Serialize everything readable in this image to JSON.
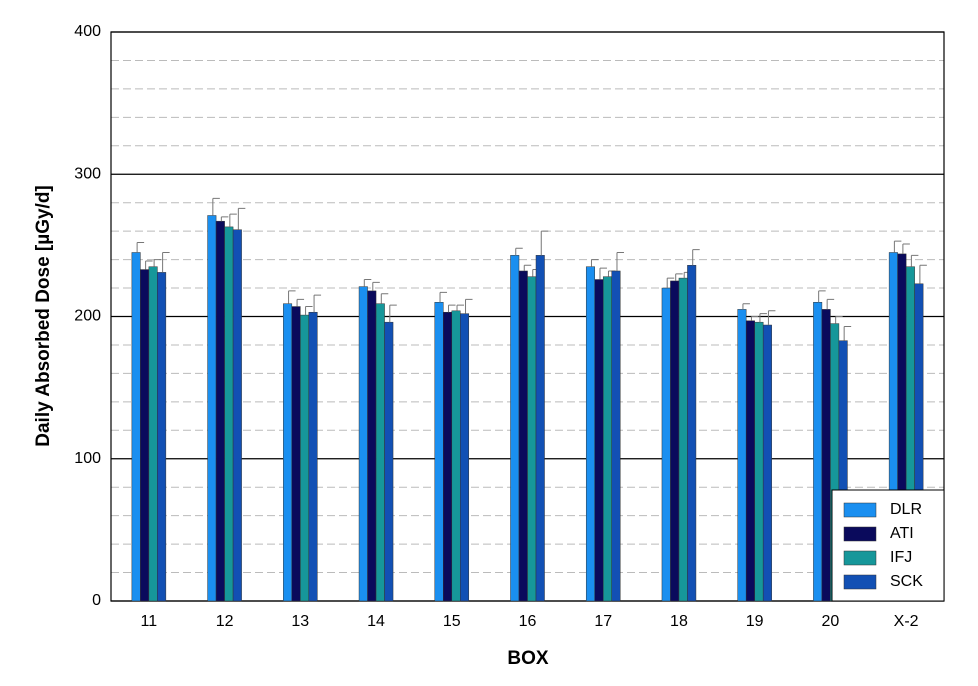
{
  "chart_data": {
    "type": "bar",
    "x_label": "BOX",
    "y_label": "Daily Absorbed Dose [µGy/d]",
    "categories": [
      "11",
      "12",
      "13",
      "14",
      "15",
      "16",
      "17",
      "18",
      "19",
      "20",
      "X-2"
    ],
    "series": [
      {
        "name": "DLR",
        "color": "#1a8ff0",
        "values": [
          245,
          271,
          209,
          221,
          210,
          243,
          235,
          220,
          205,
          210,
          245
        ],
        "errors": [
          7,
          12,
          9,
          5,
          7,
          5,
          5,
          7,
          4,
          8,
          8
        ]
      },
      {
        "name": "ATI",
        "color": "#0a0a5c",
        "values": [
          233,
          267,
          207,
          218,
          203,
          232,
          226,
          225,
          197,
          205,
          244
        ],
        "errors": [
          6,
          3,
          5,
          6,
          5,
          4,
          8,
          5,
          3,
          7,
          7
        ]
      },
      {
        "name": "IFJ",
        "color": "#16979a",
        "values": [
          235,
          263,
          201,
          209,
          204,
          228,
          228,
          227,
          196,
          195,
          235
        ],
        "errors": [
          5,
          9,
          6,
          7,
          4,
          5,
          4,
          4,
          6,
          5,
          8
        ]
      },
      {
        "name": "SCK",
        "color": "#1250b4",
        "values": [
          231,
          261,
          203,
          196,
          202,
          243,
          232,
          236,
          194,
          183,
          223
        ],
        "errors": [
          14,
          15,
          12,
          12,
          10,
          17,
          13,
          11,
          10,
          10,
          13
        ]
      }
    ],
    "ylim": [
      0,
      400
    ],
    "yticks": [
      0,
      100,
      200,
      300,
      400
    ],
    "minor_yticks": [
      20,
      40,
      60,
      80,
      120,
      140,
      160,
      180,
      220,
      240,
      260,
      280,
      320,
      340,
      360,
      380
    ],
    "grid": true,
    "legend": "lower-right"
  }
}
